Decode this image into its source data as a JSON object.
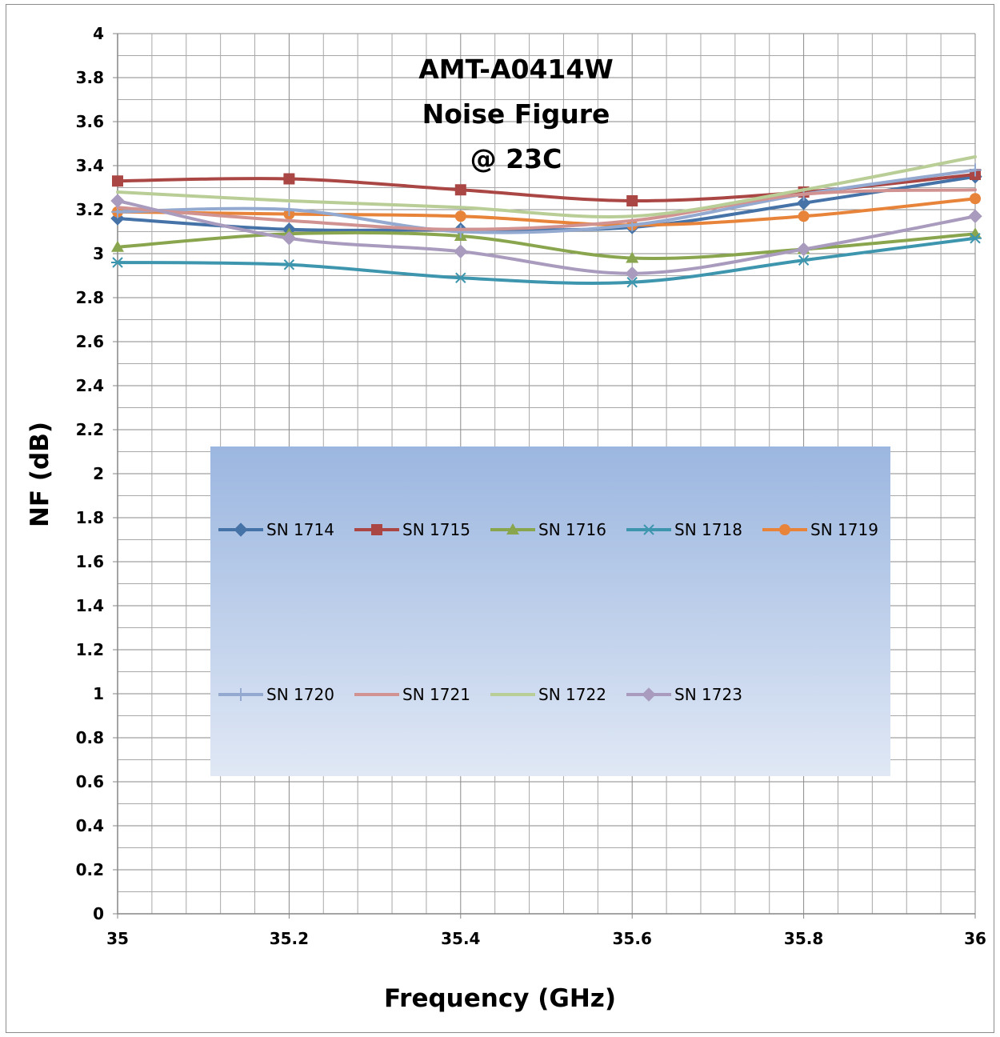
{
  "chart_data": {
    "type": "line",
    "title_lines": [
      "AMT-A0414W",
      "Noise Figure",
      "@ 23C"
    ],
    "xlabel": "Frequency (GHz)",
    "ylabel": "NF  (dB)",
    "x": [
      35,
      35.2,
      35.4,
      35.6,
      35.8,
      36
    ],
    "x_tick_labels": [
      "35",
      "35.2",
      "35.4",
      "35.6",
      "35.8",
      "36"
    ],
    "y_tick_labels": [
      "0",
      "0.2",
      "0.4",
      "0.6",
      "0.8",
      "1",
      "1.2",
      "1.4",
      "1.6",
      "1.8",
      "2",
      "2.2",
      "2.4",
      "2.6",
      "2.8",
      "3",
      "3.2",
      "3.4",
      "3.6",
      "3.8",
      "4"
    ],
    "xlim": [
      35,
      36
    ],
    "ylim": [
      0,
      4
    ],
    "grid": true,
    "legend_position": "center-left inside plot",
    "series": [
      {
        "name": "SN 1714",
        "color": "#4572a7",
        "marker": "diamond",
        "values": [
          3.16,
          3.11,
          3.11,
          3.12,
          3.23,
          3.35
        ]
      },
      {
        "name": "SN 1715",
        "color": "#aa4643",
        "marker": "square",
        "values": [
          3.33,
          3.34,
          3.29,
          3.24,
          3.28,
          3.36
        ]
      },
      {
        "name": "SN 1716",
        "color": "#89a54e",
        "marker": "triangle",
        "values": [
          3.03,
          3.09,
          3.08,
          2.98,
          3.02,
          3.09
        ]
      },
      {
        "name": "SN 1718",
        "color": "#3d96ae",
        "marker": "star",
        "values": [
          2.96,
          2.95,
          2.89,
          2.87,
          2.97,
          3.07
        ]
      },
      {
        "name": "SN 1719",
        "color": "#e8833a",
        "marker": "circle",
        "values": [
          3.19,
          3.18,
          3.17,
          3.13,
          3.17,
          3.25
        ]
      },
      {
        "name": "SN 1720",
        "color": "#93a9cf",
        "marker": "plus",
        "values": [
          3.19,
          3.2,
          3.1,
          3.13,
          3.27,
          3.38
        ]
      },
      {
        "name": "SN 1721",
        "color": "#d19392",
        "marker": "none",
        "values": [
          3.21,
          3.15,
          3.11,
          3.15,
          3.27,
          3.29
        ]
      },
      {
        "name": "SN 1722",
        "color": "#b9cd96",
        "marker": "none",
        "values": [
          3.28,
          3.24,
          3.21,
          3.17,
          3.29,
          3.44
        ]
      },
      {
        "name": "SN 1723",
        "color": "#a99bbd",
        "marker": "diamond",
        "values": [
          3.24,
          3.07,
          3.01,
          2.91,
          3.02,
          3.17
        ]
      }
    ]
  }
}
